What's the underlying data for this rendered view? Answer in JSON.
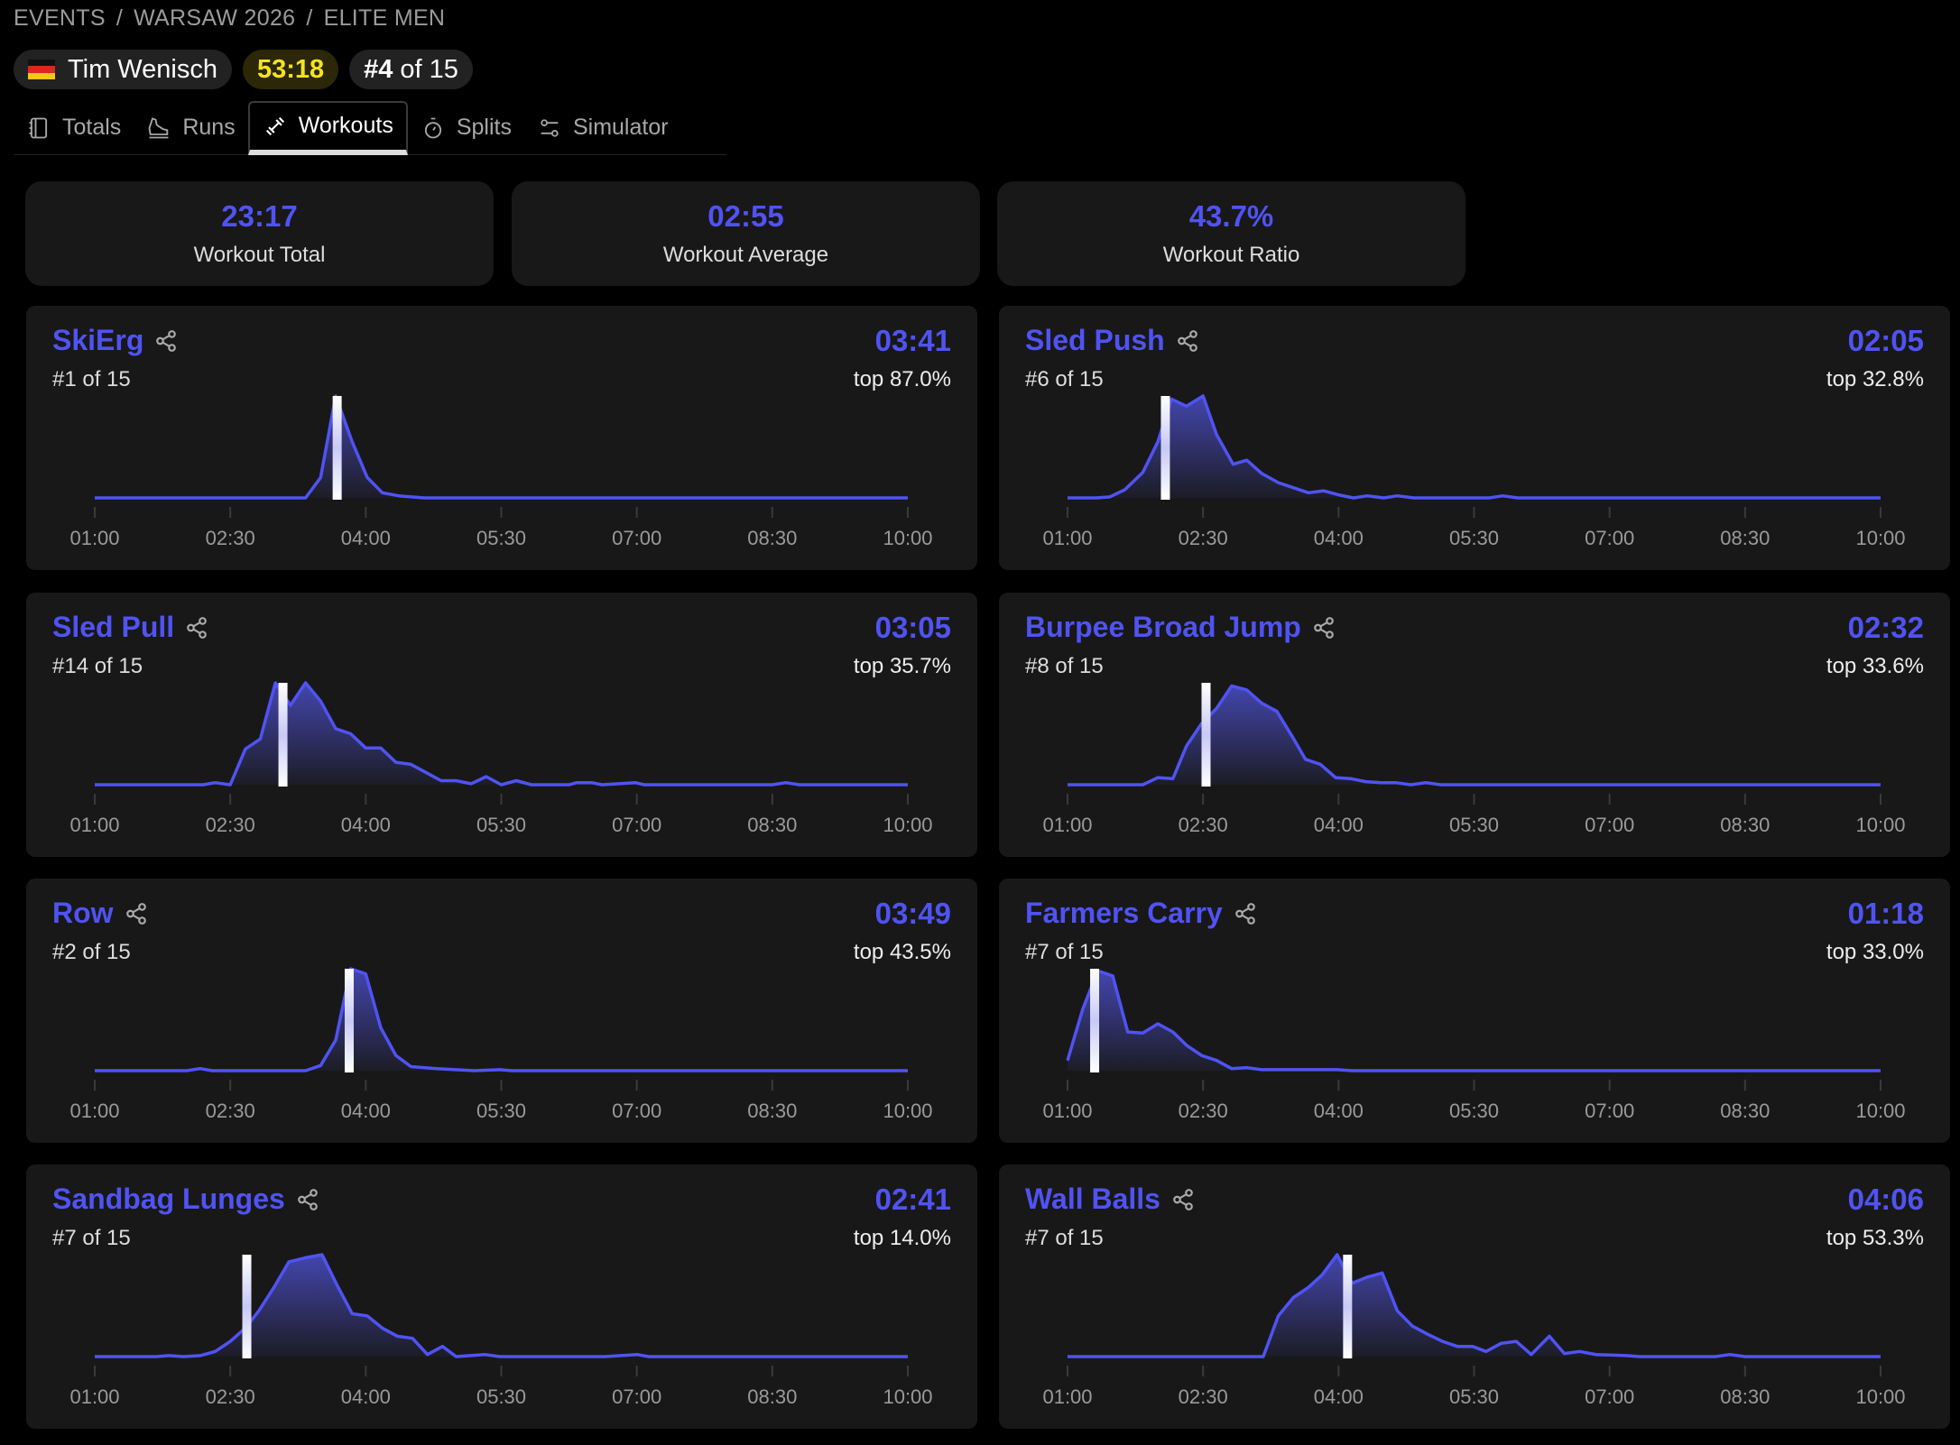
{
  "breadcrumb": [
    "EVENTS",
    "WARSAW 2026",
    "ELITE MEN"
  ],
  "breadcrumb_sep": "/",
  "athlete": {
    "name": "Tim Wenisch",
    "flag": "germany-flag",
    "total_time": "53:18",
    "rank_prefix": "#4",
    "rank_suffix": "of 15"
  },
  "tabs": [
    {
      "label": "Totals",
      "icon": "notebook-icon"
    },
    {
      "label": "Runs",
      "icon": "shoe-icon"
    },
    {
      "label": "Workouts",
      "icon": "dumbbell-icon",
      "active": true
    },
    {
      "label": "Splits",
      "icon": "stopwatch-icon"
    },
    {
      "label": "Simulator",
      "icon": "sliders-icon"
    }
  ],
  "summary": [
    {
      "value": "23:17",
      "label": "Workout Total"
    },
    {
      "value": "02:55",
      "label": "Workout Average"
    },
    {
      "value": "43.7%",
      "label": "Workout Ratio"
    }
  ],
  "colors": {
    "accent": "#5053f2",
    "time_pill": "#f3e220",
    "card": "#181818"
  },
  "chart_data": [
    {
      "type": "area",
      "title": "SkiErg",
      "time": "03:41",
      "athlete_seconds": 221,
      "rank": "#1 of 15",
      "top": "top 87.0%",
      "xlim": [
        "01:00",
        "10:00"
      ],
      "x_ticks": [
        "01:00",
        "02:30",
        "04:00",
        "05:30",
        "07:00",
        "08:30",
        "10:00"
      ],
      "ylabel": "",
      "points": [
        [
          "01:00",
          0
        ],
        [
          "03:20",
          0
        ],
        [
          "03:30",
          0.2
        ],
        [
          "03:40",
          1.0
        ],
        [
          "03:51",
          0.55
        ],
        [
          "04:01",
          0.2
        ],
        [
          "04:11",
          0.05
        ],
        [
          "04:22",
          0.02
        ],
        [
          "04:39",
          0
        ],
        [
          "10:00",
          0
        ]
      ]
    },
    {
      "type": "area",
      "title": "Sled Push",
      "time": "02:05",
      "athlete_seconds": 125,
      "rank": "#6 of 15",
      "top": "top 32.8%",
      "xlim": [
        "01:00",
        "10:00"
      ],
      "x_ticks": [
        "01:00",
        "02:30",
        "04:00",
        "05:30",
        "07:00",
        "08:30",
        "10:00"
      ],
      "points": [
        [
          "01:00",
          0
        ],
        [
          "01:19",
          0
        ],
        [
          "01:28",
          0.01
        ],
        [
          "01:38",
          0.08
        ],
        [
          "01:50",
          0.25
        ],
        [
          "02:00",
          0.55
        ],
        [
          "02:09",
          0.97
        ],
        [
          "02:19",
          0.9
        ],
        [
          "02:30",
          1.0
        ],
        [
          "02:39",
          0.62
        ],
        [
          "02:50",
          0.33
        ],
        [
          "02:59",
          0.37
        ],
        [
          "03:09",
          0.24
        ],
        [
          "03:20",
          0.15
        ],
        [
          "03:30",
          0.1
        ],
        [
          "03:40",
          0.05
        ],
        [
          "03:50",
          0.07
        ],
        [
          "04:00",
          0.03
        ],
        [
          "04:10",
          0
        ],
        [
          "04:19",
          0.02
        ],
        [
          "04:30",
          0
        ],
        [
          "04:39",
          0.02
        ],
        [
          "04:50",
          0
        ],
        [
          "05:40",
          0
        ],
        [
          "05:49",
          0.02
        ],
        [
          "05:59",
          0
        ],
        [
          "10:00",
          0
        ]
      ]
    },
    {
      "type": "area",
      "title": "Sled Pull",
      "time": "03:05",
      "athlete_seconds": 185,
      "rank": "#14 of 15",
      "top": "top 35.7%",
      "xlim": [
        "01:00",
        "10:00"
      ],
      "x_ticks": [
        "01:00",
        "02:30",
        "04:00",
        "05:30",
        "07:00",
        "08:30",
        "10:00"
      ],
      "points": [
        [
          "01:00",
          0
        ],
        [
          "02:12",
          0
        ],
        [
          "02:20",
          0.02
        ],
        [
          "02:30",
          0
        ],
        [
          "02:40",
          0.35
        ],
        [
          "02:50",
          0.45
        ],
        [
          "03:00",
          1.0
        ],
        [
          "03:10",
          0.78
        ],
        [
          "03:20",
          1.0
        ],
        [
          "03:30",
          0.82
        ],
        [
          "03:40",
          0.55
        ],
        [
          "03:50",
          0.5
        ],
        [
          "04:00",
          0.36
        ],
        [
          "04:10",
          0.36
        ],
        [
          "04:20",
          0.22
        ],
        [
          "04:30",
          0.2
        ],
        [
          "04:40",
          0.12
        ],
        [
          "04:50",
          0.04
        ],
        [
          "05:00",
          0.04
        ],
        [
          "05:10",
          0.01
        ],
        [
          "05:20",
          0.08
        ],
        [
          "05:30",
          0
        ],
        [
          "05:40",
          0.04
        ],
        [
          "05:50",
          0
        ],
        [
          "06:15",
          0
        ],
        [
          "06:20",
          0.02
        ],
        [
          "06:30",
          0.02
        ],
        [
          "06:37",
          0
        ],
        [
          "06:59",
          0.02
        ],
        [
          "07:05",
          0
        ],
        [
          "08:30",
          0
        ],
        [
          "08:39",
          0.02
        ],
        [
          "08:48",
          0
        ],
        [
          "10:00",
          0
        ]
      ]
    },
    {
      "type": "area",
      "title": "Burpee Broad Jump",
      "time": "02:32",
      "athlete_seconds": 152,
      "rank": "#8 of 15",
      "top": "top 33.6%",
      "xlim": [
        "01:00",
        "10:00"
      ],
      "x_ticks": [
        "01:00",
        "02:30",
        "04:00",
        "05:30",
        "07:00",
        "08:30",
        "10:00"
      ],
      "points": [
        [
          "01:00",
          0
        ],
        [
          "01:50",
          0
        ],
        [
          "02:00",
          0.07
        ],
        [
          "02:10",
          0.06
        ],
        [
          "02:19",
          0.38
        ],
        [
          "02:29",
          0.6
        ],
        [
          "02:39",
          0.75
        ],
        [
          "02:49",
          0.97
        ],
        [
          "02:59",
          0.93
        ],
        [
          "03:09",
          0.8
        ],
        [
          "03:19",
          0.72
        ],
        [
          "03:29",
          0.48
        ],
        [
          "03:38",
          0.25
        ],
        [
          "03:48",
          0.2
        ],
        [
          "03:58",
          0.07
        ],
        [
          "04:08",
          0.06
        ],
        [
          "04:18",
          0.03
        ],
        [
          "04:28",
          0.02
        ],
        [
          "04:38",
          0.02
        ],
        [
          "04:48",
          0
        ],
        [
          "04:58",
          0.02
        ],
        [
          "05:08",
          0
        ],
        [
          "10:00",
          0
        ]
      ]
    },
    {
      "type": "area",
      "title": "Row",
      "time": "03:49",
      "athlete_seconds": 229,
      "rank": "#2 of 15",
      "top": "top 43.5%",
      "xlim": [
        "01:00",
        "10:00"
      ],
      "x_ticks": [
        "01:00",
        "02:30",
        "04:00",
        "05:30",
        "07:00",
        "08:30",
        "10:00"
      ],
      "points": [
        [
          "01:00",
          0
        ],
        [
          "02:01",
          0
        ],
        [
          "02:10",
          0.02
        ],
        [
          "02:18",
          0
        ],
        [
          "03:20",
          0
        ],
        [
          "03:30",
          0.05
        ],
        [
          "03:40",
          0.3
        ],
        [
          "03:50",
          1.0
        ],
        [
          "04:00",
          0.95
        ],
        [
          "04:10",
          0.42
        ],
        [
          "04:20",
          0.15
        ],
        [
          "04:30",
          0.04
        ],
        [
          "04:47",
          0.02
        ],
        [
          "05:12",
          0
        ],
        [
          "05:29",
          0.01
        ],
        [
          "05:37",
          0
        ],
        [
          "10:00",
          0
        ]
      ]
    },
    {
      "type": "area",
      "title": "Farmers Carry",
      "time": "01:18",
      "athlete_seconds": 78,
      "rank": "#7 of 15",
      "top": "top 33.0%",
      "xlim": [
        "01:00",
        "10:00"
      ],
      "x_ticks": [
        "01:00",
        "02:30",
        "04:00",
        "05:30",
        "07:00",
        "08:30",
        "10:00"
      ],
      "points": [
        [
          "01:00",
          0.1
        ],
        [
          "01:10",
          0.6
        ],
        [
          "01:20",
          0.98
        ],
        [
          "01:30",
          0.93
        ],
        [
          "01:40",
          0.38
        ],
        [
          "01:50",
          0.37
        ],
        [
          "02:00",
          0.46
        ],
        [
          "02:10",
          0.38
        ],
        [
          "02:19",
          0.25
        ],
        [
          "02:29",
          0.15
        ],
        [
          "02:39",
          0.1
        ],
        [
          "02:49",
          0.02
        ],
        [
          "02:59",
          0.03
        ],
        [
          "03:09",
          0.01
        ],
        [
          "03:19",
          0.01
        ],
        [
          "03:59",
          0.01
        ],
        [
          "04:09",
          0
        ],
        [
          "10:00",
          0
        ]
      ]
    },
    {
      "type": "area",
      "title": "Sandbag Lunges",
      "time": "02:41",
      "athlete_seconds": 161,
      "rank": "#7 of 15",
      "top": "top 14.0%",
      "xlim": [
        "01:00",
        "10:00"
      ],
      "x_ticks": [
        "01:00",
        "02:30",
        "04:00",
        "05:30",
        "07:00",
        "08:30",
        "10:00"
      ],
      "points": [
        [
          "01:00",
          0
        ],
        [
          "01:41",
          0
        ],
        [
          "01:49",
          0.01
        ],
        [
          "01:59",
          0
        ],
        [
          "02:10",
          0.01
        ],
        [
          "02:20",
          0.05
        ],
        [
          "02:30",
          0.15
        ],
        [
          "02:40",
          0.28
        ],
        [
          "02:49",
          0.45
        ],
        [
          "02:59",
          0.68
        ],
        [
          "03:09",
          0.93
        ],
        [
          "03:20",
          0.97
        ],
        [
          "03:31",
          1.0
        ],
        [
          "03:41",
          0.7
        ],
        [
          "03:51",
          0.42
        ],
        [
          "04:01",
          0.4
        ],
        [
          "04:11",
          0.28
        ],
        [
          "04:21",
          0.2
        ],
        [
          "04:31",
          0.18
        ],
        [
          "04:41",
          0.02
        ],
        [
          "04:51",
          0.1
        ],
        [
          "05:00",
          0
        ],
        [
          "05:19",
          0.02
        ],
        [
          "05:29",
          0
        ],
        [
          "06:39",
          0
        ],
        [
          "07:00",
          0.02
        ],
        [
          "07:08",
          0
        ],
        [
          "10:00",
          0
        ]
      ]
    },
    {
      "type": "area",
      "title": "Wall Balls",
      "time": "04:06",
      "athlete_seconds": 246,
      "rank": "#7 of 15",
      "top": "top 53.3%",
      "xlim": [
        "01:00",
        "10:00"
      ],
      "x_ticks": [
        "01:00",
        "02:30",
        "04:00",
        "05:30",
        "07:00",
        "08:30",
        "10:00"
      ],
      "points": [
        [
          "01:00",
          0
        ],
        [
          "03:10",
          0
        ],
        [
          "03:20",
          0.4
        ],
        [
          "03:30",
          0.58
        ],
        [
          "03:40",
          0.68
        ],
        [
          "03:49",
          0.8
        ],
        [
          "03:59",
          1.0
        ],
        [
          "04:09",
          0.72
        ],
        [
          "04:19",
          0.78
        ],
        [
          "04:29",
          0.82
        ],
        [
          "04:39",
          0.45
        ],
        [
          "04:49",
          0.3
        ],
        [
          "04:59",
          0.22
        ],
        [
          "05:09",
          0.15
        ],
        [
          "05:19",
          0.1
        ],
        [
          "05:29",
          0.1
        ],
        [
          "05:38",
          0.05
        ],
        [
          "05:48",
          0.13
        ],
        [
          "05:58",
          0.15
        ],
        [
          "06:08",
          0.02
        ],
        [
          "06:20",
          0.2
        ],
        [
          "06:30",
          0.03
        ],
        [
          "06:40",
          0.05
        ],
        [
          "06:51",
          0.02
        ],
        [
          "07:11",
          0.01
        ],
        [
          "07:20",
          0
        ],
        [
          "08:10",
          0
        ],
        [
          "08:20",
          0.02
        ],
        [
          "08:30",
          0
        ],
        [
          "10:00",
          0
        ]
      ]
    }
  ]
}
